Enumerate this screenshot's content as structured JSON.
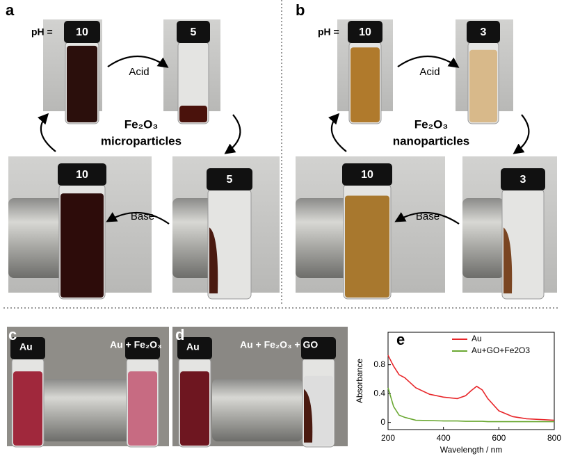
{
  "panels": {
    "a": {
      "label": "a",
      "ph_prefix": "pH =",
      "caps": [
        "10",
        "5",
        "5",
        "10"
      ],
      "acid": "Acid",
      "base": "Base",
      "material": [
        "Fe₂O₃",
        "microparticles"
      ]
    },
    "b": {
      "label": "b",
      "ph_prefix": "pH =",
      "caps": [
        "10",
        "3",
        "3",
        "10"
      ],
      "acid": "Acid",
      "base": "Base",
      "material": [
        "Fe₂O₃",
        "nanoparticles"
      ]
    },
    "c": {
      "label": "c",
      "left": "Au",
      "right": "Au + Fe₂O₃"
    },
    "d": {
      "label": "d",
      "left": "Au",
      "right": "Au + Fe₂O₃ + GO"
    }
  },
  "chart_data": {
    "type": "line",
    "panel_label": "e",
    "x_label": "Wavelength / nm",
    "y_label": "Absorbance",
    "x": [
      200,
      220,
      240,
      260,
      280,
      300,
      350,
      400,
      450,
      480,
      500,
      520,
      540,
      560,
      600,
      650,
      700,
      800
    ],
    "series": [
      {
        "name": "Au",
        "color": "#e8262a",
        "values": [
          0.93,
          0.78,
          0.66,
          0.62,
          0.55,
          0.48,
          0.39,
          0.35,
          0.33,
          0.37,
          0.44,
          0.5,
          0.45,
          0.33,
          0.16,
          0.08,
          0.05,
          0.03
        ]
      },
      {
        "name": "Au+GO+Fe2O3",
        "color": "#6aa832",
        "values": [
          0.48,
          0.22,
          0.1,
          0.07,
          0.05,
          0.03,
          0.025,
          0.02,
          0.02,
          0.015,
          0.015,
          0.015,
          0.015,
          0.01,
          0.01,
          0.01,
          0.01,
          0.01
        ]
      }
    ],
    "xlim": [
      200,
      800
    ],
    "ylim": [
      -0.1,
      1.25
    ],
    "xticks": [
      200,
      400,
      600,
      800
    ],
    "yticks": [
      0,
      0.4,
      0.8
    ],
    "legend": "upper right"
  }
}
